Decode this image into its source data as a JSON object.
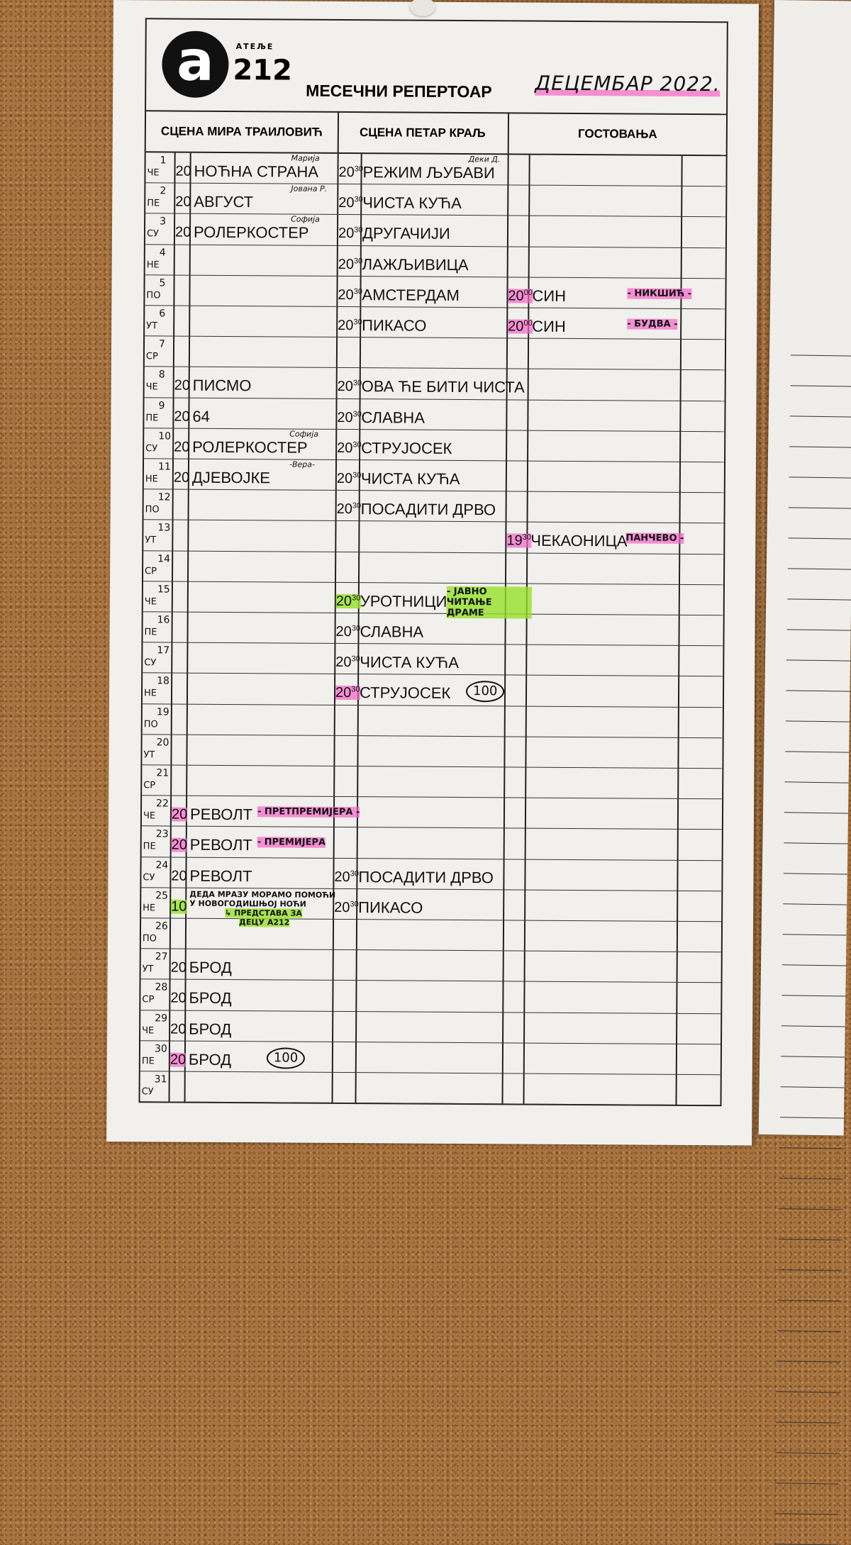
{
  "header": {
    "logo_small": "АТЕЉЕ",
    "logo_letter": "a",
    "logo_number": "212",
    "title": "МЕСЕЧНИ РЕПЕРТОАР",
    "month": "ДЕЦЕМБАР 2022."
  },
  "columns": [
    "СЦЕНА МИРА ТРАИЛОВИЋ",
    "СЦЕНА ПЕТАР КРАЉ",
    "ГОСТОВАЊА"
  ],
  "colors": {
    "pink_highlight": "#f564c8",
    "green_highlight": "#96e128",
    "paper": "#f1f0ec",
    "cork": "#a8733f"
  },
  "days": [
    {
      "day": "1",
      "wd": "ЧЕ",
      "mira": {
        "time": "20",
        "title": "НОЋНА СТРАНА",
        "note": "Марија"
      },
      "petar": {
        "time": "20",
        "min": "30",
        "title": "РЕЖИМ ЉУБАВИ",
        "note": "Деки Д."
      }
    },
    {
      "day": "2",
      "wd": "ПЕ",
      "mira": {
        "time": "20",
        "title": "АВГУСТ",
        "note": "Јована Р."
      },
      "petar": {
        "time": "20",
        "min": "30",
        "title": "ЧИСТА КУЋА"
      }
    },
    {
      "day": "3",
      "wd": "СУ",
      "mira": {
        "time": "20",
        "title": "РОЛЕРКОСТЕР",
        "note": "Софија"
      },
      "petar": {
        "time": "20",
        "min": "30",
        "title": "ДРУГАЧИЈИ"
      }
    },
    {
      "day": "4",
      "wd": "НЕ",
      "petar": {
        "time": "20",
        "min": "30",
        "title": "ЛАЖЉИВИЦА"
      }
    },
    {
      "day": "5",
      "wd": "ПО",
      "petar": {
        "time": "20",
        "min": "30",
        "title": "АМСТЕРДАМ"
      },
      "guest": {
        "time": "20",
        "min": "00",
        "title": "СИН",
        "hnote": "- НИКШИЋ -",
        "time_hl": "pink",
        "hnote_hl": "pink"
      }
    },
    {
      "day": "6",
      "wd": "УТ",
      "petar": {
        "time": "20",
        "min": "30",
        "title": "ПИКАСО"
      },
      "guest": {
        "time": "20",
        "min": "00",
        "title": "СИН",
        "hnote": "- БУДВА -",
        "time_hl": "pink",
        "hnote_hl": "pink"
      }
    },
    {
      "day": "7",
      "wd": "СР"
    },
    {
      "day": "8",
      "wd": "ЧЕ",
      "mira": {
        "time": "20",
        "title": "ПИСМО"
      },
      "petar": {
        "time": "20",
        "min": "30",
        "title": "ОВА ЋЕ БИТИ ЧИСТА"
      }
    },
    {
      "day": "9",
      "wd": "ПЕ",
      "mira": {
        "time": "20",
        "title": "64"
      },
      "petar": {
        "time": "20",
        "min": "30",
        "title": "СЛАВНА"
      }
    },
    {
      "day": "10",
      "wd": "СУ",
      "mira": {
        "time": "20",
        "title": "РОЛЕРКОСТЕР",
        "note": "Софија"
      },
      "petar": {
        "time": "20",
        "min": "30",
        "title": "СТРУЈОСЕК"
      }
    },
    {
      "day": "11",
      "wd": "НЕ",
      "mira": {
        "time": "20",
        "title": "ДЈЕВОЈКЕ",
        "note": "-Вера-"
      },
      "petar": {
        "time": "20",
        "min": "30",
        "title": "ЧИСТА КУЋА"
      }
    },
    {
      "day": "12",
      "wd": "ПО",
      "petar": {
        "time": "20",
        "min": "30",
        "title": "ПОСАДИТИ ДРВО"
      }
    },
    {
      "day": "13",
      "wd": "УТ",
      "guest": {
        "time": "19",
        "min": "30",
        "title": "ЧЕКАОНИЦА",
        "hnote": "ПАНЧЕВО -",
        "time_hl": "pink",
        "hnote_hl": "pink"
      }
    },
    {
      "day": "14",
      "wd": "СР"
    },
    {
      "day": "15",
      "wd": "ЧЕ",
      "petar": {
        "time": "20",
        "min": "30",
        "title": "УРОТНИЦИ",
        "time_hl": "green",
        "hnote": "- ЈАВНО ЧИТАЊЕ ДРАМЕ",
        "hnote_hl": "green"
      }
    },
    {
      "day": "16",
      "wd": "ПЕ",
      "petar": {
        "time": "20",
        "min": "30",
        "title": "СЛАВНА"
      }
    },
    {
      "day": "17",
      "wd": "СУ",
      "petar": {
        "time": "20",
        "min": "30",
        "title": "ЧИСТА КУЋА"
      }
    },
    {
      "day": "18",
      "wd": "НЕ",
      "petar": {
        "time": "20",
        "min": "30",
        "title": "СТРУЈОСЕК",
        "time_hl": "pink",
        "badge": "100"
      }
    },
    {
      "day": "19",
      "wd": "ПО"
    },
    {
      "day": "20",
      "wd": "УТ"
    },
    {
      "day": "21",
      "wd": "СР"
    },
    {
      "day": "22",
      "wd": "ЧЕ",
      "mira": {
        "time": "20",
        "title": "РЕВОЛТ",
        "time_hl": "pink",
        "hnote": "- ПРЕТПРЕМИЈЕРА -",
        "hnote_hl": "pink"
      }
    },
    {
      "day": "23",
      "wd": "ПЕ",
      "mira": {
        "time": "20",
        "title": "РЕВОЛТ",
        "time_hl": "pink",
        "hnote": "- ПРЕМИЈЕРА",
        "hnote_hl": "pink"
      }
    },
    {
      "day": "24",
      "wd": "СУ",
      "mira": {
        "time": "20",
        "title": "РЕВОЛТ"
      },
      "petar": {
        "time": "20",
        "min": "30",
        "title": "ПОСАДИТИ ДРВО"
      }
    },
    {
      "day": "25",
      "wd": "НЕ",
      "mira": {
        "time": "10",
        "time_hl": "green",
        "multi": [
          "ДЕДА МРАЗУ МОРАМО ПОМОЋИ",
          "У НОВОГОДИШЊОЈ НОЋИ",
          "↳ ПРЕДСТАВА ЗА",
          "ДЕЦУ А212"
        ]
      },
      "petar": {
        "time": "20",
        "min": "30",
        "title": "ПИКАСО"
      }
    },
    {
      "day": "26",
      "wd": "ПО"
    },
    {
      "day": "27",
      "wd": "УТ",
      "mira": {
        "time": "20",
        "title": "БРОД"
      }
    },
    {
      "day": "28",
      "wd": "СР",
      "mira": {
        "time": "20",
        "title": "БРОД"
      }
    },
    {
      "day": "29",
      "wd": "ЧЕ",
      "mira": {
        "time": "20",
        "title": "БРОД"
      }
    },
    {
      "day": "30",
      "wd": "ПЕ",
      "mira": {
        "time": "20",
        "title": "БРОД",
        "time_hl": "pink",
        "badge": "100"
      }
    },
    {
      "day": "31",
      "wd": "СУ"
    }
  ]
}
